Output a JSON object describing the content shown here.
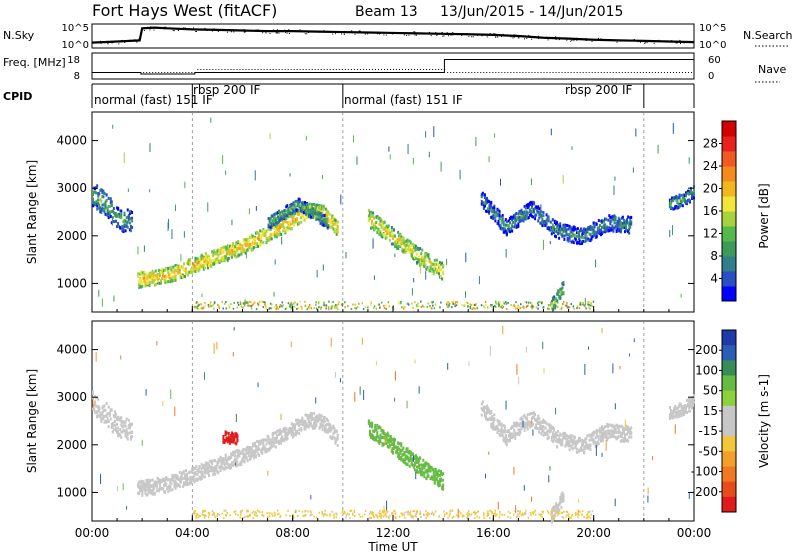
{
  "header": {
    "title": "Fort Hays West (fitACF)",
    "beam": "Beam 13",
    "date_range": "13/Jun/2015 - 14/Jun/2015"
  },
  "colors": {
    "axis": "#000000",
    "grid_dashed": "#888888",
    "power_scale": [
      "#0000ff",
      "#2a4ec4",
      "#2f7f8a",
      "#3d9a5b",
      "#55b84a",
      "#a8d140",
      "#f2e63a",
      "#f2b71e",
      "#f58a1e",
      "#f15a22",
      "#e8211d",
      "#d40000"
    ],
    "velocity_scale": [
      "#1f3aa8",
      "#2a5db5",
      "#3a8b5a",
      "#66bb44",
      "#8cd23c",
      "#c7c7c7",
      "#c7c7c7",
      "#f2c83a",
      "#f2a02a",
      "#f07820",
      "#e84c1c",
      "#e01b1b"
    ]
  },
  "chart_data": [
    {
      "type": "line",
      "panel": "noise",
      "left_label": "N.Sky",
      "right_label": "N.Search",
      "left_ticks": [
        "10^5",
        "10^0"
      ],
      "right_ticks": [
        "10^5",
        "10^0"
      ],
      "x": [
        0,
        1,
        1.9,
        2.0,
        2.5,
        3,
        4,
        5,
        6,
        7,
        8,
        9,
        10,
        11,
        12,
        13,
        14,
        15,
        16,
        17,
        18,
        19,
        20,
        21,
        22,
        23,
        24
      ],
      "series": [
        {
          "name": "N.Sky",
          "values": [
            0.2,
            0.25,
            0.3,
            0.85,
            0.88,
            0.85,
            0.8,
            0.78,
            0.75,
            0.72,
            0.72,
            0.7,
            0.68,
            0.66,
            0.64,
            0.62,
            0.6,
            0.58,
            0.55,
            0.5,
            0.42,
            0.38,
            0.33,
            0.3,
            0.28,
            0.25,
            0.22
          ]
        }
      ]
    },
    {
      "type": "line",
      "panel": "frequency",
      "left_label": "Freq. [MHz]",
      "right_label": "Nave",
      "left_ticks": [
        "18",
        "8"
      ],
      "right_ticks": [
        "60",
        "0"
      ],
      "series": [
        {
          "name": "Freq.",
          "points": [
            [
              0,
              10.2
            ],
            [
              1.95,
              10.2
            ],
            [
              1.95,
              9.6
            ],
            [
              4.1,
              9.6
            ],
            [
              4.1,
              10.2
            ],
            [
              14.05,
              10.2
            ],
            [
              14.05,
              15.4
            ],
            [
              24,
              15.4
            ]
          ]
        }
      ]
    },
    {
      "type": "table",
      "panel": "cpid",
      "label": "CPID",
      "segments": [
        {
          "start": 0,
          "end": 4.0,
          "text": "normal (fast) 151 IF"
        },
        {
          "start": 4.0,
          "end": 10.0,
          "text": "rbsp 200 IF"
        },
        {
          "start": 10.0,
          "end": 22.0,
          "text": "normal (fast) 151 IF"
        },
        {
          "start": 18.5,
          "end": 22.0,
          "text": "rbsp 200 IF"
        }
      ],
      "boundaries": [
        4.0,
        10.0,
        22.0
      ]
    },
    {
      "type": "heatmap",
      "panel": "power",
      "ylabel": "Slant Range [km]",
      "yticks": [
        1000,
        2000,
        3000,
        4000
      ],
      "ylim": [
        400,
        4600
      ],
      "colorbar_label": "Power [dB]",
      "colorbar_ticks": [
        4,
        8,
        12,
        16,
        20,
        24,
        28
      ],
      "colorbar_range": [
        0,
        32
      ],
      "bands": [
        {
          "t": [
            0.0,
            0.5,
            1.0,
            1.6
          ],
          "r": [
            2900,
            2700,
            2400,
            2300
          ],
          "width": 250,
          "v": 10
        },
        {
          "t": [
            1.8,
            3.0,
            4.5,
            6.0,
            7.5,
            8.6,
            9.2,
            9.8
          ],
          "r": [
            1100,
            1200,
            1500,
            1800,
            2200,
            2550,
            2500,
            2150
          ],
          "width": 160,
          "v": 20
        },
        {
          "t": [
            11.0,
            12.0,
            13.0,
            14.0
          ],
          "r": [
            2400,
            2000,
            1600,
            1250
          ],
          "width": 180,
          "v": 18
        },
        {
          "t": [
            15.5,
            16.5,
            17.5,
            18.5,
            19.5,
            20.5,
            21.5
          ],
          "r": [
            2800,
            2200,
            2600,
            2150,
            2000,
            2300,
            2250
          ],
          "width": 170,
          "v": 9
        },
        {
          "t": [
            23.0,
            23.6,
            24.0
          ],
          "r": [
            2700,
            2800,
            2950
          ],
          "width": 140,
          "v": 10
        },
        {
          "t": [
            7.0,
            8.2,
            9.4
          ],
          "r": [
            2300,
            2700,
            2300
          ],
          "width": 120,
          "v": 11
        },
        {
          "t": [
            18.3,
            18.8
          ],
          "r": [
            550,
            950
          ],
          "width": 150,
          "v": 14
        }
      ],
      "ground_scatter_range_km": 480
    },
    {
      "type": "heatmap",
      "panel": "velocity",
      "ylabel": "Slant Range [km]",
      "yticks": [
        1000,
        2000,
        3000,
        4000
      ],
      "ylim": [
        400,
        4600
      ],
      "colorbar_label": "Velocity [m s-1]",
      "colorbar_ticks": [
        200,
        100,
        50,
        15,
        -15,
        -50,
        -100,
        -200
      ],
      "bands": [
        {
          "t": [
            0.0,
            0.5,
            1.0,
            1.6
          ],
          "r": [
            2900,
            2700,
            2400,
            2300
          ],
          "width": 250,
          "v": 0
        },
        {
          "t": [
            1.8,
            3.0,
            4.5,
            6.0,
            7.5,
            8.6,
            9.2,
            9.8
          ],
          "r": [
            1100,
            1200,
            1500,
            1800,
            2200,
            2550,
            2500,
            2150
          ],
          "width": 160,
          "v": 0
        },
        {
          "t": [
            11.0,
            12.0,
            13.0,
            14.0
          ],
          "r": [
            2400,
            2000,
            1600,
            1250
          ],
          "width": 180,
          "v": 25
        },
        {
          "t": [
            15.5,
            16.5,
            17.5,
            18.5,
            19.5,
            20.5,
            21.5
          ],
          "r": [
            2800,
            2200,
            2600,
            2150,
            2000,
            2300,
            2250
          ],
          "width": 170,
          "v": 0
        },
        {
          "t": [
            23.0,
            23.6,
            24.0
          ],
          "r": [
            2700,
            2800,
            2950
          ],
          "width": 140,
          "v": 0
        },
        {
          "t": [
            5.2,
            5.8
          ],
          "r": [
            2200,
            2150
          ],
          "width": 120,
          "v": -220
        },
        {
          "t": [
            18.3,
            18.8
          ],
          "r": [
            550,
            950
          ],
          "width": 150,
          "v": 0
        }
      ],
      "ground_scatter_range_km": 480
    }
  ],
  "x_axis": {
    "label": "Time UT",
    "ticks": [
      "00:00",
      "04:00",
      "08:00",
      "12:00",
      "16:00",
      "20:00",
      "00:00"
    ],
    "range_hours": [
      0,
      24
    ]
  }
}
